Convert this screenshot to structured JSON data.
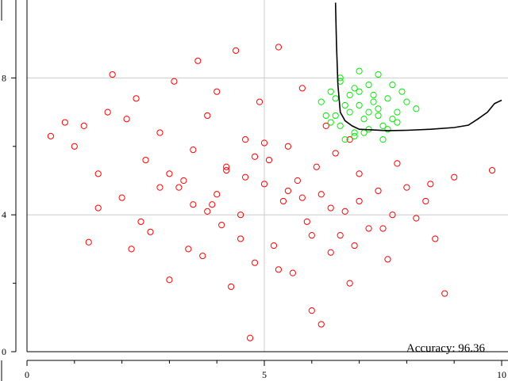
{
  "chart_data": {
    "type": "scatter",
    "title": "",
    "xlabel": "",
    "ylabel": "",
    "xlim": [
      0,
      10
    ],
    "ylim": [
      0,
      10
    ],
    "grid": true,
    "x_ticks": [
      0,
      5,
      10
    ],
    "x_tick_labels": [
      "0",
      "5",
      "10"
    ],
    "x_minor_ticks": [
      1,
      2,
      3,
      4,
      6,
      7,
      8,
      9
    ],
    "y_ticks": [
      0,
      4,
      8
    ],
    "y_tick_labels": [
      "0",
      "4",
      "8"
    ],
    "y_minor_ticks": [
      2,
      6
    ],
    "annotation": "Accuracy: 96.36",
    "colors": {
      "class_a": "#ff0000",
      "class_b": "#00ee00",
      "boundary": "#000000",
      "grid": "#cccccc"
    },
    "series": [
      {
        "marker": "open-circle",
        "color": "#ff0000",
        "x": [
          0.5,
          0.8,
          1.0,
          1.2,
          1.3,
          1.5,
          1.7,
          1.8,
          2.0,
          2.1,
          2.3,
          2.5,
          2.6,
          2.8,
          3.0,
          3.1,
          3.2,
          3.4,
          3.5,
          3.6,
          3.7,
          3.8,
          3.9,
          4.0,
          4.1,
          4.2,
          4.3,
          4.4,
          4.5,
          4.6,
          4.7,
          4.8,
          4.9,
          5.0,
          5.1,
          5.2,
          5.3,
          5.4,
          5.5,
          5.6,
          5.7,
          5.8,
          5.9,
          6.0,
          6.1,
          6.2,
          6.3,
          6.4,
          6.5,
          6.6,
          6.7,
          6.8,
          7.0,
          7.2,
          7.4,
          7.6,
          7.8,
          8.0,
          8.2,
          8.4,
          8.6,
          8.8,
          9.0,
          9.8,
          1.5,
          2.4,
          3.3,
          4.5,
          5.3,
          6.2,
          6.9,
          7.7,
          8.5,
          3.0,
          4.0,
          5.0,
          6.0,
          7.0,
          2.2,
          3.8,
          4.8,
          5.8,
          6.8,
          7.5,
          4.6,
          5.5,
          3.5,
          2.8,
          6.4,
          4.2
        ],
        "y": [
          6.3,
          6.7,
          6.0,
          6.6,
          3.2,
          5.2,
          7.0,
          8.1,
          4.5,
          6.8,
          7.4,
          5.6,
          3.5,
          6.4,
          2.1,
          7.9,
          4.8,
          3.0,
          5.9,
          8.5,
          2.8,
          6.9,
          4.3,
          7.6,
          3.7,
          5.3,
          1.9,
          8.8,
          4.0,
          6.2,
          0.4,
          2.6,
          7.3,
          4.9,
          5.6,
          3.1,
          8.9,
          4.4,
          6.0,
          2.3,
          5.0,
          7.7,
          3.8,
          1.2,
          5.4,
          4.6,
          6.6,
          2.9,
          5.8,
          3.4,
          4.1,
          2.0,
          5.2,
          3.6,
          4.7,
          2.7,
          5.5,
          4.8,
          3.9,
          4.4,
          3.3,
          1.7,
          5.1,
          5.3,
          4.2,
          3.8,
          5.0,
          3.3,
          2.4,
          0.8,
          3.1,
          4.0,
          4.9,
          5.2,
          4.6,
          6.1,
          3.4,
          4.4,
          3.0,
          4.1,
          5.7,
          4.5,
          6.2,
          3.6,
          5.1,
          4.7,
          4.3,
          4.8,
          4.2,
          5.4
        ]
      },
      {
        "marker": "open-circle",
        "color": "#00ee00",
        "x": [
          6.2,
          6.4,
          6.6,
          6.8,
          7.0,
          7.2,
          7.4,
          7.6,
          7.8,
          8.0,
          8.2,
          6.5,
          6.7,
          6.9,
          7.1,
          7.3,
          7.5,
          7.7,
          6.3,
          6.6,
          6.9,
          7.2,
          7.5,
          7.8,
          6.8,
          7.1,
          7.4,
          6.5,
          7.0,
          7.6,
          6.7,
          7.3,
          7.9,
          6.4,
          7.2,
          6.9,
          7.7,
          7.0,
          6.6,
          7.4
        ],
        "y": [
          7.3,
          7.6,
          7.9,
          7.5,
          7.2,
          7.8,
          7.1,
          7.4,
          7.0,
          7.3,
          7.1,
          6.9,
          7.2,
          7.7,
          6.8,
          7.5,
          6.6,
          7.8,
          6.9,
          6.6,
          6.3,
          6.5,
          6.2,
          6.7,
          7.0,
          6.4,
          6.9,
          7.4,
          7.6,
          6.5,
          6.2,
          7.3,
          7.6,
          6.7,
          7.0,
          6.4,
          6.8,
          8.2,
          8.0,
          8.1
        ]
      }
    ],
    "boundary": {
      "x": [
        6.5,
        6.52,
        6.55,
        6.6,
        6.7,
        6.85,
        7.0,
        7.3,
        7.6,
        8.0,
        8.5,
        9.0,
        9.3,
        9.5,
        9.7,
        9.85,
        10.0
      ],
      "y": [
        10.2,
        9.0,
        7.8,
        7.0,
        6.75,
        6.6,
        6.5,
        6.48,
        6.46,
        6.47,
        6.5,
        6.55,
        6.62,
        6.8,
        7.0,
        7.25,
        7.35
      ]
    }
  }
}
